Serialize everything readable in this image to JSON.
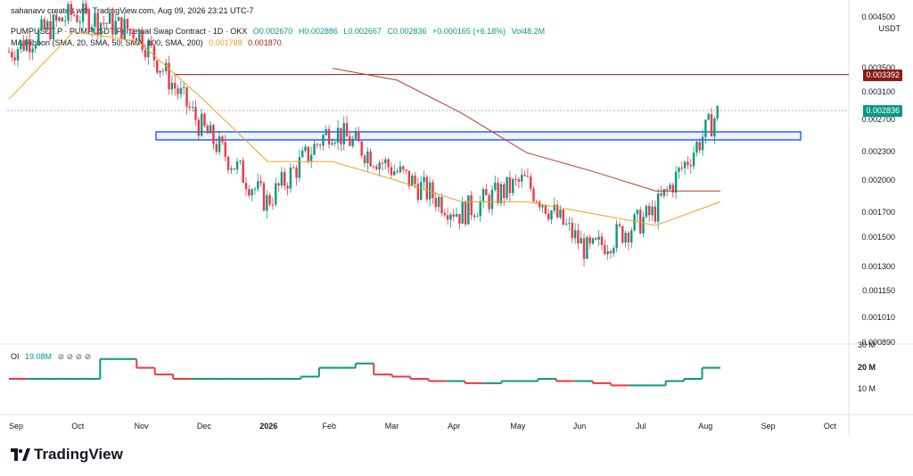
{
  "header_text": "sahanavv created with TradingView.com, Aug 09, 2026 23:21 UTC-7",
  "symbol_line": {
    "symbol": "PUMPUSDT.P · PUMPUSDT Perpetual Swap Contract · 1D · OKX",
    "open": "O0.002670",
    "high": "H0.002886",
    "low": "L0.002667",
    "close": "C0.002836",
    "change": "+0.000165 (+6.18%)",
    "vol": "Vol48.2M"
  },
  "ma_line": {
    "label": "MA Ribbon (SMA, 20, SMA, 50, SMA, 100, SMA, 200)",
    "v1": "0.001788",
    "v2": "0.001870"
  },
  "currency": "USDT",
  "price_labels": [
    "0.004500",
    "0.003500",
    "0.003100",
    "0.002700",
    "0.002300",
    "0.002000",
    "0.001700",
    "0.001500",
    "0.001300",
    "0.001150",
    "0.001010",
    "0.000890"
  ],
  "price_tags": {
    "resistance": "0.003392",
    "last": "0.002836"
  },
  "oi_panel": {
    "label": "OI",
    "value": "19.08M",
    "icons": "⊘ ⊘ ⊘ ⊘",
    "axis": [
      "30 M",
      "20 M",
      "10 M"
    ]
  },
  "x_labels": [
    "Sep",
    "Oct",
    "Nov",
    "Dec",
    "2026",
    "Feb",
    "Mar",
    "Apr",
    "May",
    "Jun",
    "Jul",
    "Aug",
    "Sep",
    "Oct"
  ],
  "colors": {
    "up": "#089981",
    "down": "#f23645",
    "ma_orange": "#f0a020",
    "ma_red": "#c0392b",
    "box": "#2962ff",
    "resistance": "#8b1a1a"
  },
  "logo_text": "TradingView",
  "chart_data": {
    "type": "line",
    "title": "PUMPUSDT.P · PUMPUSDT Perpetual Swap Contract · 1D · OKX",
    "xlabel": "",
    "ylabel": "USDT",
    "ylim": [
      0.00089,
      0.0045
    ],
    "log_scale": true,
    "grid": false,
    "x": [
      "Sep",
      "Oct",
      "Nov",
      "Dec",
      "Jan",
      "Feb",
      "Mar",
      "Apr",
      "May",
      "Jun",
      "Jul",
      "Aug"
    ],
    "series": [
      {
        "values": [
          0.0038,
          0.0046,
          0.0042,
          0.0026,
          0.0018,
          0.0026,
          0.0021,
          0.0017,
          0.002,
          0.0014,
          0.0017,
          0.0028
        ]
      },
      {
        "name": "0.001788",
        "values": [
          0.003,
          0.0042,
          0.004,
          0.003,
          0.0022,
          0.0022,
          0.002,
          0.0018,
          0.0018,
          0.0017,
          0.0016,
          0.0018
        ]
      },
      {
        "name": "0.001870",
        "values": [
          null,
          null,
          null,
          null,
          null,
          0.0035,
          0.0033,
          0.0028,
          0.0023,
          0.0021,
          0.0019,
          0.0019
        ]
      }
    ],
    "annotations": {
      "resistance_line": 0.003392,
      "support_zone": [
        0.00245,
        0.00255
      ],
      "last_price": 0.002836
    },
    "oi_series": {
      "name": "OI",
      "ylim": [
        0,
        30
      ],
      "units": "M",
      "values": [
        15,
        15,
        15,
        15,
        15,
        24,
        24,
        20,
        17,
        15,
        15,
        15,
        15,
        15,
        15,
        15,
        16,
        20,
        20,
        22,
        17,
        16,
        15,
        14,
        14,
        13,
        13,
        14,
        14,
        15,
        14,
        14,
        13,
        12,
        12,
        12,
        14,
        15,
        20
      ]
    }
  }
}
